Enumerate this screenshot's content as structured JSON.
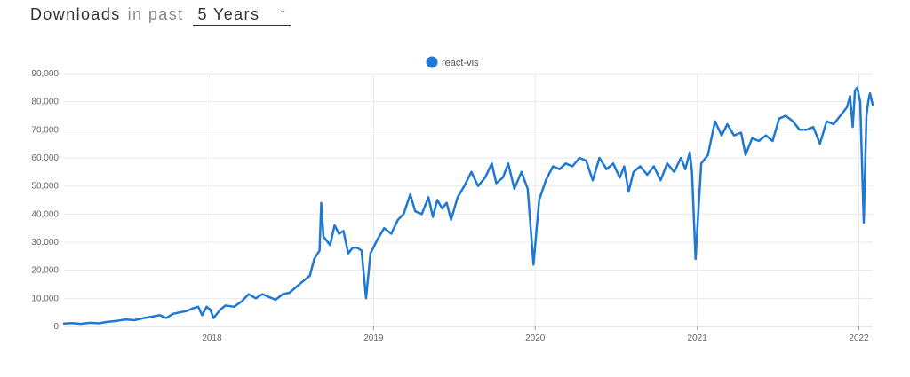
{
  "header": {
    "title": "Downloads",
    "subtitle": "in past",
    "period": "5 Years"
  },
  "colors": {
    "series": "#1e78d4",
    "grid": "#e8e8e8",
    "grid_major": "#c8c8c8",
    "axis_text": "#666666"
  },
  "chart_data": {
    "type": "line",
    "title": "",
    "xlabel": "",
    "ylabel": "",
    "ylim": [
      0,
      90000
    ],
    "yticks": [
      {
        "value": 0,
        "label": "0"
      },
      {
        "value": 10000,
        "label": "10,000"
      },
      {
        "value": 20000,
        "label": "20,000"
      },
      {
        "value": 30000,
        "label": "30,000"
      },
      {
        "value": 40000,
        "label": "40,000"
      },
      {
        "value": 50000,
        "label": "50,000"
      },
      {
        "value": 60000,
        "label": "60,000"
      },
      {
        "value": 70000,
        "label": "70,000"
      },
      {
        "value": 80000,
        "label": "80,000"
      },
      {
        "value": 90000,
        "label": "90,000"
      }
    ],
    "xlim": [
      "2017-02-01",
      "2022-02-01"
    ],
    "xticks": [
      {
        "date": "2018-01-01",
        "label": "2018"
      },
      {
        "date": "2019-01-01",
        "label": "2019"
      },
      {
        "date": "2020-01-01",
        "label": "2020"
      },
      {
        "date": "2021-01-01",
        "label": "2021"
      },
      {
        "date": "2022-01-01",
        "label": "2022"
      }
    ],
    "grid": true,
    "legend": {
      "position": "top-center",
      "entries": [
        "react-vis"
      ]
    },
    "series": [
      {
        "name": "react-vis",
        "points": [
          [
            "2017-02-01",
            1000
          ],
          [
            "2017-02-20",
            1200
          ],
          [
            "2017-03-10",
            900
          ],
          [
            "2017-04-01",
            1300
          ],
          [
            "2017-04-20",
            1100
          ],
          [
            "2017-05-10",
            1600
          ],
          [
            "2017-06-01",
            2000
          ],
          [
            "2017-06-20",
            2500
          ],
          [
            "2017-07-10",
            2200
          ],
          [
            "2017-08-01",
            3000
          ],
          [
            "2017-08-20",
            3500
          ],
          [
            "2017-09-05",
            4000
          ],
          [
            "2017-09-20",
            3000
          ],
          [
            "2017-10-05",
            4500
          ],
          [
            "2017-10-20",
            5000
          ],
          [
            "2017-11-05",
            5500
          ],
          [
            "2017-11-20",
            6500
          ],
          [
            "2017-12-01",
            7000
          ],
          [
            "2017-12-10",
            4000
          ],
          [
            "2017-12-20",
            7000
          ],
          [
            "2017-12-28",
            6000
          ],
          [
            "2018-01-05",
            3000
          ],
          [
            "2018-01-20",
            6000
          ],
          [
            "2018-02-01",
            7500
          ],
          [
            "2018-02-20",
            7000
          ],
          [
            "2018-03-10",
            9000
          ],
          [
            "2018-03-25",
            11500
          ],
          [
            "2018-04-10",
            10000
          ],
          [
            "2018-04-25",
            11500
          ],
          [
            "2018-05-10",
            10500
          ],
          [
            "2018-05-25",
            9500
          ],
          [
            "2018-06-10",
            11500
          ],
          [
            "2018-06-25",
            12000
          ],
          [
            "2018-07-10",
            14000
          ],
          [
            "2018-07-25",
            16000
          ],
          [
            "2018-08-10",
            18000
          ],
          [
            "2018-08-20",
            24000
          ],
          [
            "2018-09-01",
            27000
          ],
          [
            "2018-09-05",
            44000
          ],
          [
            "2018-09-10",
            32000
          ],
          [
            "2018-09-25",
            29000
          ],
          [
            "2018-10-05",
            36000
          ],
          [
            "2018-10-15",
            33000
          ],
          [
            "2018-10-25",
            34000
          ],
          [
            "2018-11-05",
            26000
          ],
          [
            "2018-11-15",
            28000
          ],
          [
            "2018-11-25",
            28000
          ],
          [
            "2018-12-05",
            27000
          ],
          [
            "2018-12-15",
            10000
          ],
          [
            "2018-12-25",
            26000
          ],
          [
            "2019-01-10",
            31000
          ],
          [
            "2019-01-25",
            35000
          ],
          [
            "2019-02-10",
            33000
          ],
          [
            "2019-02-25",
            38000
          ],
          [
            "2019-03-10",
            40000
          ],
          [
            "2019-03-25",
            47000
          ],
          [
            "2019-04-05",
            41000
          ],
          [
            "2019-04-20",
            40000
          ],
          [
            "2019-05-05",
            46000
          ],
          [
            "2019-05-15",
            39000
          ],
          [
            "2019-05-25",
            45000
          ],
          [
            "2019-06-05",
            42000
          ],
          [
            "2019-06-15",
            44000
          ],
          [
            "2019-06-25",
            38000
          ],
          [
            "2019-07-10",
            46000
          ],
          [
            "2019-07-25",
            50000
          ],
          [
            "2019-08-10",
            55000
          ],
          [
            "2019-08-25",
            50000
          ],
          [
            "2019-09-10",
            53000
          ],
          [
            "2019-09-25",
            58000
          ],
          [
            "2019-10-05",
            51000
          ],
          [
            "2019-10-20",
            53000
          ],
          [
            "2019-11-01",
            58000
          ],
          [
            "2019-11-15",
            49000
          ],
          [
            "2019-12-01",
            55000
          ],
          [
            "2019-12-15",
            49000
          ],
          [
            "2019-12-28",
            22000
          ],
          [
            "2020-01-10",
            45000
          ],
          [
            "2020-01-25",
            52000
          ],
          [
            "2020-02-10",
            57000
          ],
          [
            "2020-02-25",
            56000
          ],
          [
            "2020-03-10",
            58000
          ],
          [
            "2020-03-25",
            57000
          ],
          [
            "2020-04-10",
            60000
          ],
          [
            "2020-04-25",
            59000
          ],
          [
            "2020-05-10",
            52000
          ],
          [
            "2020-05-25",
            60000
          ],
          [
            "2020-06-10",
            56000
          ],
          [
            "2020-06-25",
            58000
          ],
          [
            "2020-07-10",
            53000
          ],
          [
            "2020-07-20",
            57000
          ],
          [
            "2020-07-30",
            48000
          ],
          [
            "2020-08-10",
            55000
          ],
          [
            "2020-08-25",
            57000
          ],
          [
            "2020-09-10",
            54000
          ],
          [
            "2020-09-25",
            57000
          ],
          [
            "2020-10-10",
            52000
          ],
          [
            "2020-10-25",
            58000
          ],
          [
            "2020-11-10",
            55000
          ],
          [
            "2020-11-25",
            60000
          ],
          [
            "2020-12-05",
            56000
          ],
          [
            "2020-12-15",
            62000
          ],
          [
            "2020-12-20",
            55000
          ],
          [
            "2020-12-28",
            24000
          ],
          [
            "2021-01-10",
            58000
          ],
          [
            "2021-01-25",
            61000
          ],
          [
            "2021-02-10",
            73000
          ],
          [
            "2021-02-25",
            68000
          ],
          [
            "2021-03-10",
            72000
          ],
          [
            "2021-03-25",
            68000
          ],
          [
            "2021-04-10",
            69000
          ],
          [
            "2021-04-20",
            61000
          ],
          [
            "2021-05-05",
            67000
          ],
          [
            "2021-05-20",
            66000
          ],
          [
            "2021-06-05",
            68000
          ],
          [
            "2021-06-20",
            66000
          ],
          [
            "2021-07-05",
            74000
          ],
          [
            "2021-07-20",
            75000
          ],
          [
            "2021-08-05",
            73000
          ],
          [
            "2021-08-20",
            70000
          ],
          [
            "2021-09-05",
            70000
          ],
          [
            "2021-09-20",
            71000
          ],
          [
            "2021-10-05",
            65000
          ],
          [
            "2021-10-20",
            73000
          ],
          [
            "2021-11-05",
            72000
          ],
          [
            "2021-11-20",
            75000
          ],
          [
            "2021-12-05",
            78000
          ],
          [
            "2021-12-12",
            82000
          ],
          [
            "2021-12-18",
            71000
          ],
          [
            "2021-12-23",
            84000
          ],
          [
            "2021-12-28",
            85000
          ],
          [
            "2022-01-04",
            80000
          ],
          [
            "2022-01-12",
            37000
          ],
          [
            "2022-01-18",
            75000
          ],
          [
            "2022-01-22",
            80000
          ],
          [
            "2022-01-26",
            83000
          ],
          [
            "2022-02-01",
            79000
          ]
        ]
      }
    ]
  }
}
